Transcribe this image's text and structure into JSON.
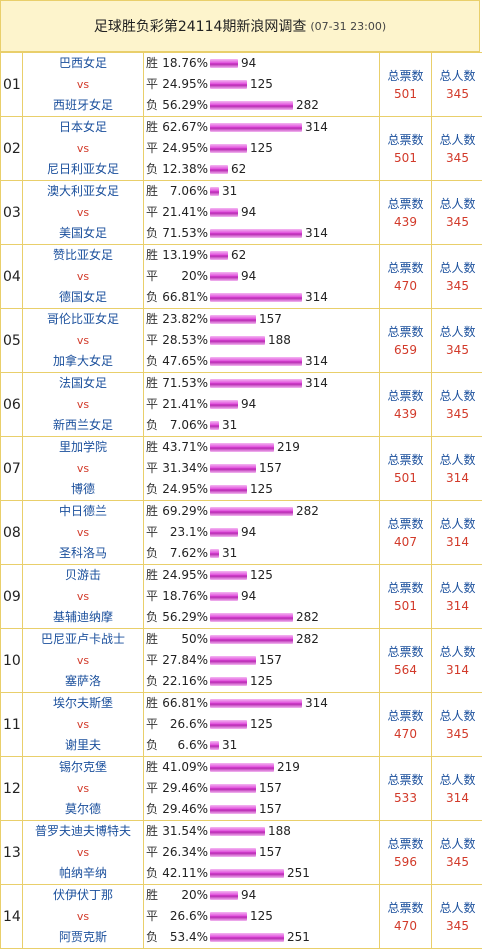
{
  "header": {
    "title": "足球胜负彩第24114期新浪网调查",
    "time": "(07-31 23:00)"
  },
  "labels": {
    "win": "胜",
    "draw": "平",
    "lose": "负",
    "vs": "vs",
    "total_votes": "总票数",
    "total_people": "总人数"
  },
  "matches": [
    {
      "no": "01",
      "home": "巴西女足",
      "away": "西班牙女足",
      "win": {
        "pct": "18.76%",
        "count": "94"
      },
      "draw": {
        "pct": "24.95%",
        "count": "125"
      },
      "lose": {
        "pct": "56.29%",
        "count": "282"
      },
      "votes": "501",
      "people": "345"
    },
    {
      "no": "02",
      "home": "日本女足",
      "away": "尼日利亚女足",
      "win": {
        "pct": "62.67%",
        "count": "314"
      },
      "draw": {
        "pct": "24.95%",
        "count": "125"
      },
      "lose": {
        "pct": "12.38%",
        "count": "62"
      },
      "votes": "501",
      "people": "345"
    },
    {
      "no": "03",
      "home": "澳大利亚女足",
      "away": "美国女足",
      "win": {
        "pct": "7.06%",
        "count": "31"
      },
      "draw": {
        "pct": "21.41%",
        "count": "94"
      },
      "lose": {
        "pct": "71.53%",
        "count": "314"
      },
      "votes": "439",
      "people": "345"
    },
    {
      "no": "04",
      "home": "赞比亚女足",
      "away": "德国女足",
      "win": {
        "pct": "13.19%",
        "count": "62"
      },
      "draw": {
        "pct": "20%",
        "count": "94"
      },
      "lose": {
        "pct": "66.81%",
        "count": "314"
      },
      "votes": "470",
      "people": "345"
    },
    {
      "no": "05",
      "home": "哥伦比亚女足",
      "away": "加拿大女足",
      "win": {
        "pct": "23.82%",
        "count": "157"
      },
      "draw": {
        "pct": "28.53%",
        "count": "188"
      },
      "lose": {
        "pct": "47.65%",
        "count": "314"
      },
      "votes": "659",
      "people": "345"
    },
    {
      "no": "06",
      "home": "法国女足",
      "away": "新西兰女足",
      "win": {
        "pct": "71.53%",
        "count": "314"
      },
      "draw": {
        "pct": "21.41%",
        "count": "94"
      },
      "lose": {
        "pct": "7.06%",
        "count": "31"
      },
      "votes": "439",
      "people": "345"
    },
    {
      "no": "07",
      "home": "里加学院",
      "away": "博德",
      "win": {
        "pct": "43.71%",
        "count": "219"
      },
      "draw": {
        "pct": "31.34%",
        "count": "157"
      },
      "lose": {
        "pct": "24.95%",
        "count": "125"
      },
      "votes": "501",
      "people": "314"
    },
    {
      "no": "08",
      "home": "中日德兰",
      "away": "圣科洛马",
      "win": {
        "pct": "69.29%",
        "count": "282"
      },
      "draw": {
        "pct": "23.1%",
        "count": "94"
      },
      "lose": {
        "pct": "7.62%",
        "count": "31"
      },
      "votes": "407",
      "people": "314"
    },
    {
      "no": "09",
      "home": "贝游击",
      "away": "基辅迪纳摩",
      "win": {
        "pct": "24.95%",
        "count": "125"
      },
      "draw": {
        "pct": "18.76%",
        "count": "94"
      },
      "lose": {
        "pct": "56.29%",
        "count": "282"
      },
      "votes": "501",
      "people": "314"
    },
    {
      "no": "10",
      "home": "巴尼亚卢卡战士",
      "away": "塞萨洛",
      "win": {
        "pct": "50%",
        "count": "282"
      },
      "draw": {
        "pct": "27.84%",
        "count": "157"
      },
      "lose": {
        "pct": "22.16%",
        "count": "125"
      },
      "votes": "564",
      "people": "314"
    },
    {
      "no": "11",
      "home": "埃尔夫斯堡",
      "away": "谢里夫",
      "win": {
        "pct": "66.81%",
        "count": "314"
      },
      "draw": {
        "pct": "26.6%",
        "count": "125"
      },
      "lose": {
        "pct": "6.6%",
        "count": "31"
      },
      "votes": "470",
      "people": "345"
    },
    {
      "no": "12",
      "home": "锡尔克堡",
      "away": "莫尔德",
      "win": {
        "pct": "41.09%",
        "count": "219"
      },
      "draw": {
        "pct": "29.46%",
        "count": "157"
      },
      "lose": {
        "pct": "29.46%",
        "count": "157"
      },
      "votes": "533",
      "people": "314"
    },
    {
      "no": "13",
      "home": "普罗夫迪夫博特夫",
      "away": "帕纳辛纳",
      "win": {
        "pct": "31.54%",
        "count": "188"
      },
      "draw": {
        "pct": "26.34%",
        "count": "157"
      },
      "lose": {
        "pct": "42.11%",
        "count": "251"
      },
      "votes": "596",
      "people": "345"
    },
    {
      "no": "14",
      "home": "伏伊伏丁那",
      "away": "阿贾克斯",
      "win": {
        "pct": "20%",
        "count": "94"
      },
      "draw": {
        "pct": "26.6%",
        "count": "125"
      },
      "lose": {
        "pct": "53.4%",
        "count": "251"
      },
      "votes": "470",
      "people": "345"
    }
  ]
}
